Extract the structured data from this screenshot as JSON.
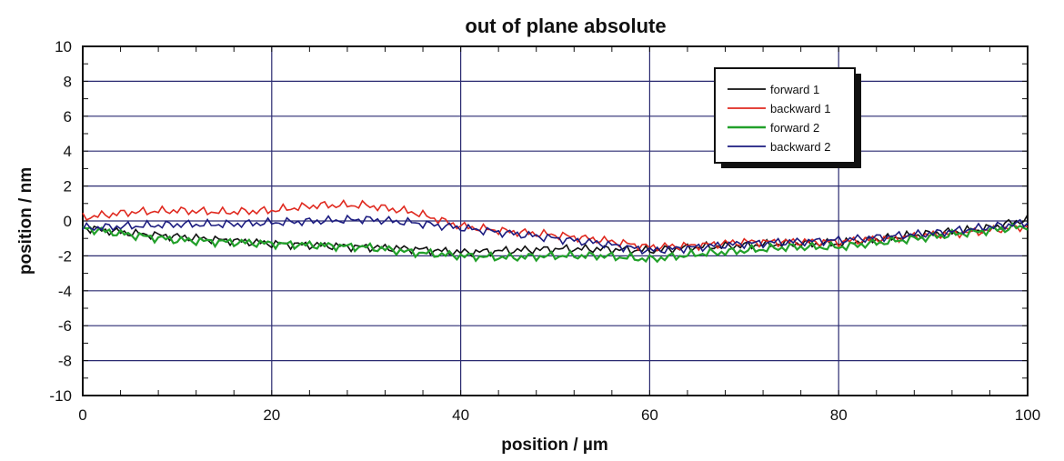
{
  "chart_data": {
    "type": "line",
    "title": "out of plane absolute",
    "xlabel": "position  / µm",
    "ylabel": "position  / nm",
    "xlim": [
      0,
      100
    ],
    "ylim": [
      -10,
      10
    ],
    "x_ticks": [
      0,
      20,
      40,
      60,
      80,
      100
    ],
    "y_ticks": [
      -10,
      -8,
      -6,
      -4,
      -2,
      0,
      2,
      4,
      6,
      8,
      10
    ],
    "x_tick_labels": [
      "0",
      "20",
      "40",
      "60",
      "80",
      "100"
    ],
    "y_tick_labels": [
      "-10",
      "-8",
      "-6",
      "-4",
      "-2",
      "0",
      "2",
      "4",
      "6",
      "8",
      "10"
    ],
    "grid": true,
    "legend_position": "top-right",
    "series": [
      {
        "name": "forward 1",
        "color": "#111111",
        "x": [
          0,
          5,
          10,
          15,
          20,
          25,
          30,
          35,
          40,
          45,
          50,
          55,
          60,
          65,
          70,
          75,
          80,
          85,
          90,
          95,
          100
        ],
        "y": [
          -0.4,
          -0.7,
          -0.9,
          -1.1,
          -1.3,
          -1.4,
          -1.5,
          -1.6,
          -1.8,
          -1.7,
          -1.6,
          -1.6,
          -1.7,
          -1.5,
          -1.4,
          -1.3,
          -1.3,
          -1.0,
          -0.7,
          -0.5,
          0.1
        ]
      },
      {
        "name": "backward 1",
        "color": "#e02a20",
        "x": [
          0,
          5,
          10,
          15,
          20,
          25,
          30,
          35,
          40,
          45,
          50,
          55,
          60,
          65,
          70,
          75,
          80,
          85,
          90,
          95,
          100
        ],
        "y": [
          0.2,
          0.5,
          0.6,
          0.5,
          0.6,
          0.9,
          0.9,
          0.5,
          -0.3,
          -0.6,
          -0.8,
          -1.1,
          -1.5,
          -1.4,
          -1.2,
          -1.2,
          -1.2,
          -1.0,
          -0.8,
          -0.6,
          -0.3
        ]
      },
      {
        "name": "forward 2",
        "color": "#22a02a",
        "x": [
          0,
          5,
          10,
          15,
          20,
          25,
          30,
          35,
          40,
          45,
          50,
          55,
          60,
          65,
          70,
          75,
          80,
          85,
          90,
          95,
          100
        ],
        "y": [
          -0.4,
          -0.8,
          -1.1,
          -1.2,
          -1.3,
          -1.4,
          -1.5,
          -1.8,
          -2.0,
          -2.1,
          -2.0,
          -2.0,
          -2.2,
          -1.9,
          -1.7,
          -1.5,
          -1.5,
          -1.2,
          -0.9,
          -0.6,
          -0.3
        ]
      },
      {
        "name": "backward 2",
        "color": "#1c1c80",
        "x": [
          0,
          5,
          10,
          15,
          20,
          25,
          30,
          35,
          40,
          45,
          50,
          55,
          60,
          65,
          70,
          75,
          80,
          85,
          90,
          95,
          100
        ],
        "y": [
          -0.4,
          -0.3,
          -0.2,
          -0.2,
          -0.1,
          0.0,
          0.1,
          -0.1,
          -0.4,
          -0.7,
          -1.0,
          -1.3,
          -1.7,
          -1.5,
          -1.3,
          -1.2,
          -1.1,
          -0.9,
          -0.7,
          -0.4,
          -0.1
        ]
      }
    ]
  }
}
